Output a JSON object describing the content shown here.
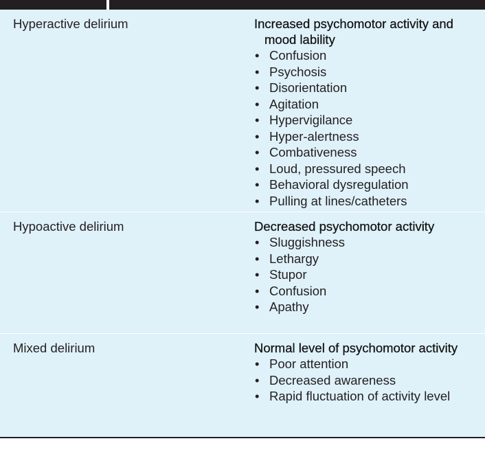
{
  "table": {
    "rows": [
      {
        "type": "Hyperactive delirium",
        "heading": "Increased psychomotor activity and mood lability",
        "items": [
          "Confusion",
          "Psychosis",
          "Disorientation",
          "Agitation",
          "Hypervigilance",
          "Hyper-alertness",
          "Combativeness",
          "Loud, pressured speech",
          "Behavioral dysregulation",
          "Pulling at lines/catheters"
        ]
      },
      {
        "type": "Hypoactive delirium",
        "heading": "Decreased psychomotor activity",
        "items": [
          "Sluggishness",
          "Lethargy",
          "Stupor",
          "Confusion",
          "Apathy"
        ]
      },
      {
        "type": "Mixed delirium",
        "heading": "Normal level of psychomotor activity",
        "items": [
          "Poor attention",
          "Decreased awareness",
          "Rapid fluctuation of activity level"
        ]
      }
    ],
    "colors": {
      "cell_background": "#dff1f9",
      "header_bar": "#231f20",
      "rule": "#231f20"
    },
    "bullet_symbol": "•"
  }
}
